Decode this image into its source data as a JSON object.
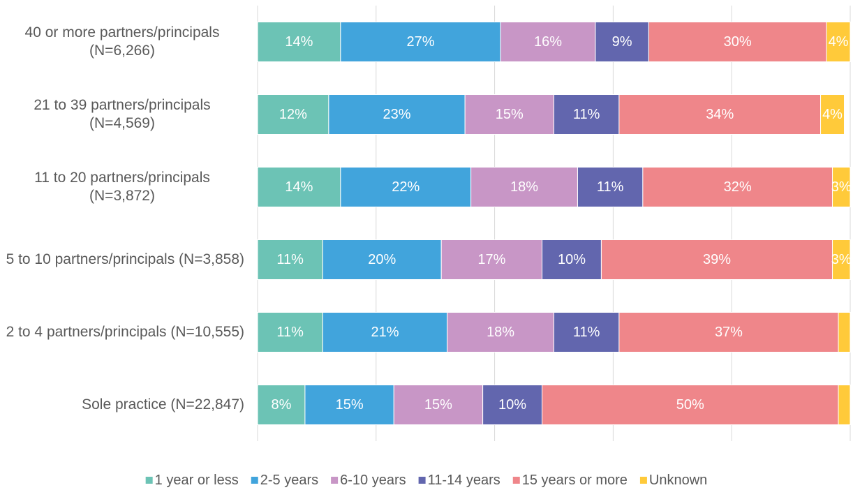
{
  "chart_data": {
    "type": "stacked-bar-horizontal",
    "categories": [
      "40 or more partners/principals (N=6,266)",
      "21 to 39 partners/principals (N=4,569)",
      "11 to 20 partners/principals (N=3,872)",
      "5 to 10 partners/principals (N=3,858)",
      "2 to 4 partners/principals (N=10,555)",
      "Sole practice (N=22,847)"
    ],
    "series": [
      {
        "name": "1 year or less",
        "color": "#6cc3b5",
        "values": [
          14,
          12,
          14,
          11,
          11,
          8
        ],
        "value_labels": [
          "14%",
          "12%",
          "14%",
          "11%",
          "11%",
          "8%"
        ]
      },
      {
        "name": "2-5 years",
        "color": "#41a4dc",
        "values": [
          27,
          23,
          22,
          20,
          21,
          15
        ],
        "value_labels": [
          "27%",
          "23%",
          "22%",
          "20%",
          "21%",
          "15%"
        ]
      },
      {
        "name": "6-10 years",
        "color": "#c896c6",
        "values": [
          16,
          15,
          18,
          17,
          18,
          15
        ],
        "value_labels": [
          "16%",
          "15%",
          "18%",
          "17%",
          "18%",
          "15%"
        ]
      },
      {
        "name": "11-14 years",
        "color": "#6266ae",
        "values": [
          9,
          11,
          11,
          10,
          11,
          10
        ],
        "value_labels": [
          "9%",
          "11%",
          "11%",
          "10%",
          "11%",
          "10%"
        ]
      },
      {
        "name": "15 years or more",
        "color": "#ef868a",
        "values": [
          30,
          34,
          32,
          39,
          37,
          50
        ],
        "value_labels": [
          "30%",
          "34%",
          "32%",
          "39%",
          "37%",
          "50%"
        ]
      },
      {
        "name": "Unknown",
        "color": "#ffca3a",
        "values": [
          4,
          4,
          3,
          3,
          2,
          2
        ],
        "value_labels": [
          "4%",
          "4%",
          "3%",
          "3%",
          null,
          null
        ]
      }
    ],
    "xlim": [
      0,
      100
    ],
    "xticks": [
      0,
      20,
      40,
      60,
      80,
      100
    ],
    "grid": true,
    "legend": "bottom"
  }
}
